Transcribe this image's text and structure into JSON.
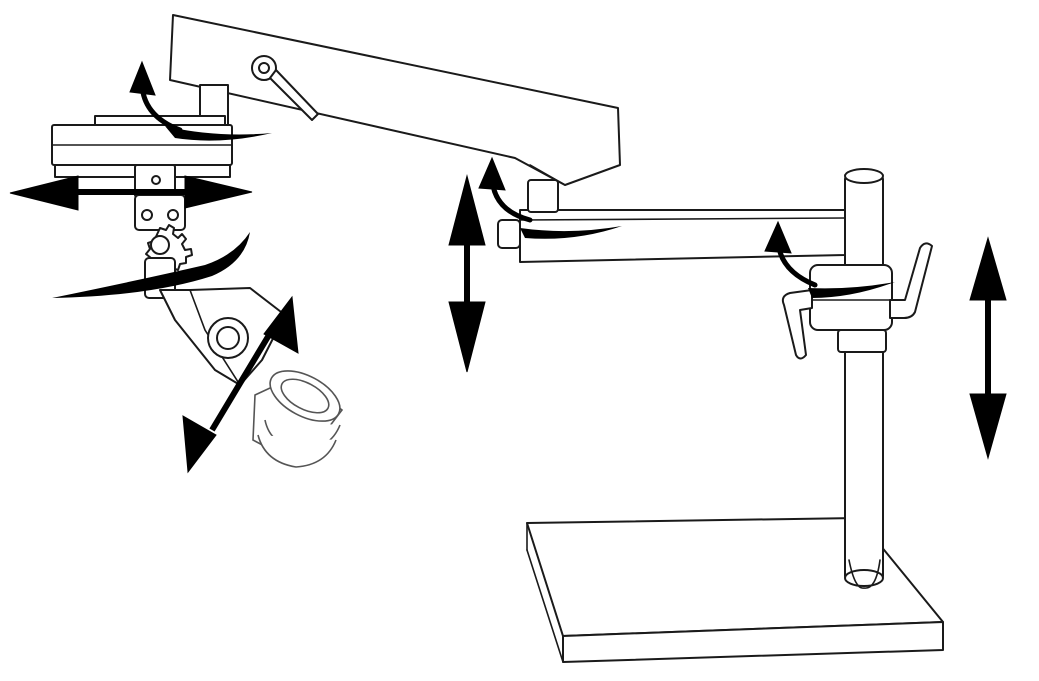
{
  "diagram": {
    "subject": "stereo-microscope-boom-stand",
    "colors": {
      "line": "#1a1a1a",
      "arrow": "#000000",
      "fill": "#ffffff"
    },
    "icons": [
      "vertical-double-arrow-icon",
      "horizontal-double-arrow-icon",
      "diagonal-double-arrow-icon",
      "rotation-arrow-icon"
    ]
  }
}
